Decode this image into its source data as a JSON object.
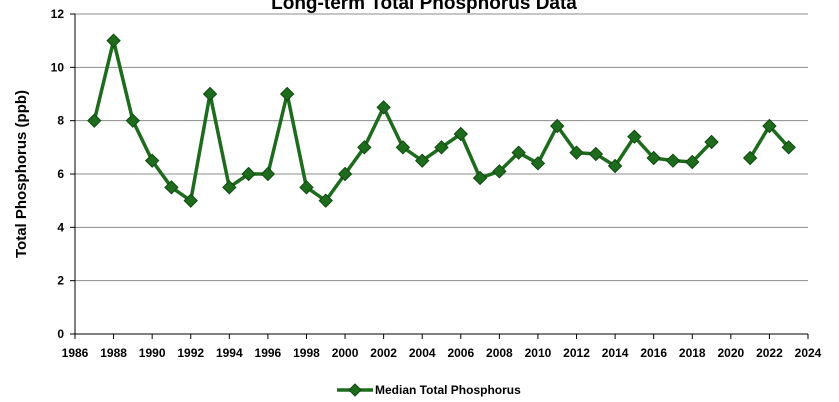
{
  "chart_data": {
    "type": "line",
    "title": "Long-term Total Phosphorus Data",
    "xlabel": "",
    "ylabel": "Total Phosphorus (ppb)",
    "xlim": [
      1986,
      2024
    ],
    "ylim": [
      0,
      12
    ],
    "x_ticks": [
      1986,
      1988,
      1990,
      1992,
      1994,
      1996,
      1998,
      2000,
      2002,
      2004,
      2006,
      2008,
      2010,
      2012,
      2014,
      2016,
      2018,
      2020,
      2022,
      2024
    ],
    "y_ticks": [
      0,
      2,
      4,
      6,
      8,
      10,
      12
    ],
    "grid": "horizontal",
    "legend_position": "bottom",
    "colors": {
      "line": "#1e6b1e",
      "marker": "#1e6b1e",
      "grid": "#8c8c8c"
    },
    "series": [
      {
        "name": "Median Total Phosphorus",
        "marker": "diamond",
        "x": [
          1987,
          1988,
          1989,
          1990,
          1991,
          1992,
          1993,
          1994,
          1995,
          1996,
          1997,
          1998,
          1999,
          2000,
          2001,
          2002,
          2003,
          2004,
          2005,
          2006,
          2007,
          2008,
          2009,
          2010,
          2011,
          2012,
          2013,
          2014,
          2015,
          2016,
          2017,
          2018,
          2019,
          2020,
          2021,
          2022,
          2023
        ],
        "values": [
          8.0,
          11.0,
          8.0,
          6.5,
          5.5,
          5.0,
          9.0,
          5.5,
          6.0,
          6.0,
          9.0,
          5.5,
          5.0,
          6.0,
          7.0,
          8.5,
          7.0,
          6.5,
          7.0,
          7.5,
          5.85,
          6.1,
          6.8,
          6.4,
          7.8,
          6.8,
          6.75,
          6.3,
          7.4,
          6.6,
          6.5,
          6.45,
          7.2,
          null,
          6.6,
          7.8,
          7.0
        ]
      }
    ]
  }
}
